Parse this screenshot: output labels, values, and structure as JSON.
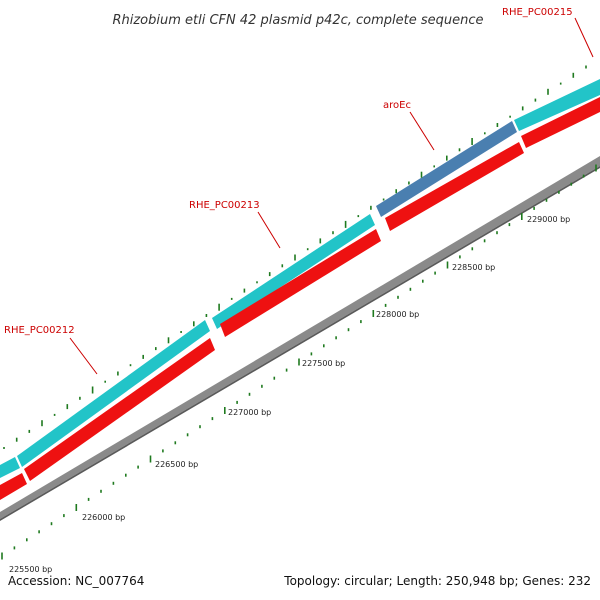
{
  "title": "Rhizobium etli CFN 42 plasmid p42c, complete sequence",
  "footer": {
    "accession": "Accession: NC_007764",
    "summary": "Topology: circular; Length: 250,948 bp; Genes: 232"
  },
  "colors": {
    "cds_forward": "#22c4c8",
    "cds_highlight": "#4a7fb0",
    "cds_reverse": "#ee1111",
    "backbone": "#8a8a8a",
    "tick": "#1f7a1f",
    "label": "#cc0000"
  },
  "genes": [
    {
      "id": "g212",
      "label": "RHE_PC00212"
    },
    {
      "id": "g213",
      "label": "RHE_PC00213"
    },
    {
      "id": "g214",
      "label": "aroEc"
    },
    {
      "id": "g215",
      "label": "RHE_PC00215"
    }
  ],
  "bp_labels": [
    "225500 bp",
    "226000 bp",
    "226500 bp",
    "227000 bp",
    "227500 bp",
    "228000 bp",
    "228500 bp",
    "229000 bp"
  ]
}
